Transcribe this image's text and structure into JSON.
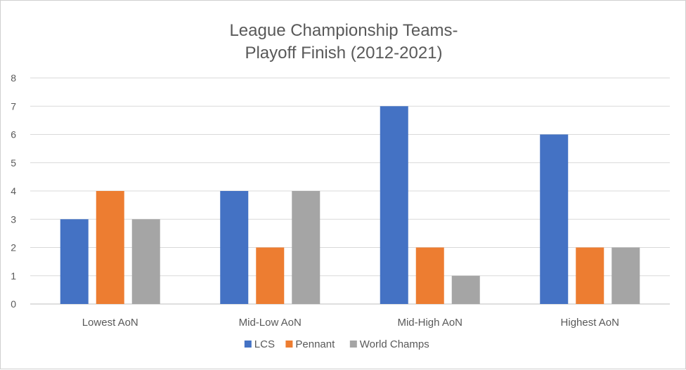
{
  "chart_data": {
    "type": "bar",
    "title_lines": [
      "League Championship Teams-",
      "Playoff Finish (2012-2021)"
    ],
    "title": "League Championship Teams- Playoff Finish (2012-2021)",
    "xlabel": "",
    "ylabel": "",
    "categories": [
      "Lowest AoN",
      "Mid-Low AoN",
      "Mid-High AoN",
      "Highest AoN"
    ],
    "series": [
      {
        "name": "LCS",
        "values": [
          3,
          4,
          7,
          6
        ],
        "color": "#4472C4"
      },
      {
        "name": "Pennant",
        "values": [
          4,
          2,
          2,
          2
        ],
        "color": "#ED7D31"
      },
      {
        "name": "World Champs",
        "values": [
          3,
          4,
          1,
          2
        ],
        "color": "#A5A5A5"
      }
    ],
    "ylim": [
      0,
      8
    ],
    "yticks": [
      0,
      1,
      2,
      3,
      4,
      5,
      6,
      7,
      8
    ],
    "grid": true,
    "legend_position": "bottom"
  }
}
